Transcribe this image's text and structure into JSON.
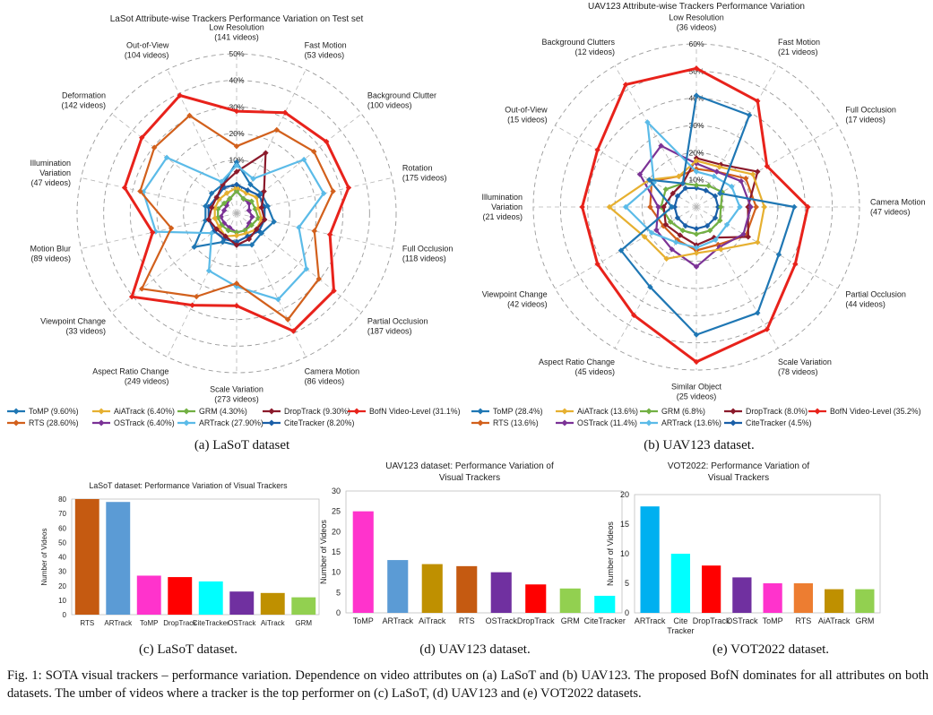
{
  "caption": "Fig. 1: SOTA visual trackers – performance variation. Dependence on video attributes on (a) LaSoT and (b) UAV123. The proposed BofN dominates for all attributes on both datasets. The umber of videos where a tracker is the top performer on (c) LaSoT, (d) UAV123 and (e) VOT2022 datasets.",
  "subcaptions": [
    "(a) LaSoT dataset",
    "(b) UAV123 dataset.",
    "(c) LaSoT dataset.",
    "(d) UAV123 dataset.",
    "(e) VOT2022 dataset."
  ],
  "colors": {
    "ToMP": "#1f77b4",
    "AiATrack": "#e6b030",
    "GRM": "#72b043",
    "DropTrack": "#8b1a2b",
    "BofN": "#e8221b",
    "RTS": "#d2601c",
    "OSTrack": "#7b3296",
    "ARTrack": "#5bbbe8",
    "CiteTracker": "#1a5fa8",
    "bar_tomp": "#ff33cc",
    "bar_rts": "#c55a11",
    "bar_artrack_lasot": "#5b9bd5",
    "bar_artrack_vot": "#00b0f0",
    "bar_droptrack": "#ff0000",
    "bar_citetracker": "#00ffff",
    "bar_ostrack": "#7030a0",
    "bar_aiatrack": "#bf9000",
    "bar_grm": "#92d050",
    "bar_artrack_uav": "#5b9bd5",
    "bar_rts_uav": "#c55a11"
  },
  "chart_data": [
    {
      "type": "radar",
      "title": "LaSot Attribute-wise Trackers Performance Variation on Test set",
      "rmax": 50,
      "ring_labels": [
        "5%",
        "10%",
        "20%",
        "30%",
        "40%",
        "50%"
      ],
      "axes": [
        {
          "name": "Low Resolution",
          "count": "(141 videos)"
        },
        {
          "name": "Fast Motion",
          "count": "(53 videos)"
        },
        {
          "name": "Background Clutter",
          "count": "(100 videos)"
        },
        {
          "name": "Rotation",
          "count": "(175 videos)"
        },
        {
          "name": "Full Occlusion",
          "count": "(118 videos)"
        },
        {
          "name": "Partial Occlusion",
          "count": "(187 videos)"
        },
        {
          "name": "Camera Motion",
          "count": "(86 videos)"
        },
        {
          "name": "Scale Variation",
          "count": "(273 videos)"
        },
        {
          "name": "Aspect Ratio Change",
          "count": "(249 videos)"
        },
        {
          "name": "Viewpoint Change",
          "count": "(33 videos)"
        },
        {
          "name": "Motion Blur",
          "count": "(89 videos)"
        },
        {
          "name": "Illumination Variation",
          "count": "(47 videos)"
        },
        {
          "name": "Deformation",
          "count": "(142 videos)"
        },
        {
          "name": "Out-of-View",
          "count": "(104 videos)"
        }
      ],
      "series": [
        {
          "name": "BofN Video-Level (31.1%)",
          "key": "BofN",
          "values": [
            32,
            35,
            36,
            36,
            30,
            39,
            41,
            29,
            32,
            42,
            27,
            36,
            38,
            41
          ]
        },
        {
          "name": "RTS (28.60%)",
          "key": "RTS",
          "values": [
            21,
            29,
            31,
            31,
            25,
            33,
            37,
            22,
            29,
            38,
            21,
            31,
            33,
            34
          ]
        },
        {
          "name": "ARTrack (27.90%)",
          "key": "ARTrack",
          "values": [
            15,
            12,
            27,
            28,
            20,
            28,
            30,
            23,
            20,
            10,
            26,
            30,
            28,
            11
          ]
        },
        {
          "name": "DropTrack (9.30%)",
          "key": "DropTrack",
          "values": [
            13,
            21,
            11,
            8,
            9,
            8,
            9,
            10,
            8,
            8,
            9,
            8,
            8,
            10
          ]
        },
        {
          "name": "ToMP (9.60%)",
          "key": "ToMP",
          "values": [
            16,
            10,
            10,
            10,
            12,
            10,
            11,
            10,
            10,
            17,
            10,
            10,
            10,
            10
          ]
        },
        {
          "name": "CiteTracker (8.20%)",
          "key": "CiteTracker",
          "values": [
            9,
            8,
            9,
            9,
            9,
            9,
            8,
            9,
            9,
            9,
            9,
            9,
            8,
            9
          ]
        },
        {
          "name": "AiATrack (6.40%)",
          "key": "AiATrack",
          "values": [
            8,
            7,
            8,
            7,
            8,
            8,
            7,
            7,
            8,
            7,
            7,
            7,
            7,
            7
          ]
        },
        {
          "name": "GRM (4.30%)",
          "key": "GRM",
          "values": [
            7,
            5,
            6,
            6,
            7,
            6,
            6,
            6,
            6,
            6,
            6,
            6,
            5,
            5
          ]
        },
        {
          "name": "OSTrack (6.40%)",
          "key": "OSTrack",
          "values": [
            7,
            5,
            5,
            4,
            5,
            5,
            6,
            6,
            5,
            5,
            5,
            4,
            4,
            5
          ]
        }
      ],
      "legend": [
        [
          "ToMP (9.60%)",
          "ToMP"
        ],
        [
          "AiATrack (6.40%)",
          "AiATrack"
        ],
        [
          "GRM (4.30%)",
          "GRM"
        ],
        [
          "DropTrack (9.30%)",
          "DropTrack"
        ],
        [
          "BofN Video-Level (31.1%)",
          "BofN"
        ],
        [
          "RTS (28.60%)",
          "RTS"
        ],
        [
          "OSTrack (6.40%)",
          "OSTrack"
        ],
        [
          "ARTrack (27.90%)",
          "ARTrack"
        ],
        [
          "CiteTracker (8.20%)",
          "CiteTracker"
        ]
      ]
    },
    {
      "type": "radar",
      "title": "UAV123 Attribute-wise Trackers Performance Variation",
      "rmax": 60,
      "ring_labels": [
        "10%",
        "20%",
        "30%",
        "40%",
        "50%",
        "60%"
      ],
      "axes": [
        {
          "name": "Low Resolution",
          "count": "(36 videos)"
        },
        {
          "name": "Fast Motion",
          "count": "(21 videos)"
        },
        {
          "name": "Full Occlusion",
          "count": "(17 videos)"
        },
        {
          "name": "Camera Motion",
          "count": "(47 videos)"
        },
        {
          "name": "Partial Occlusion",
          "count": "(44 videos)"
        },
        {
          "name": "Scale Variation",
          "count": "(78 videos)"
        },
        {
          "name": "Similar Object",
          "count": "(25 videos)"
        },
        {
          "name": "Aspect Ratio Change",
          "count": "(45 videos)"
        },
        {
          "name": "Viewpoint Change",
          "count": "(42 videos)"
        },
        {
          "name": "Illumination Variation",
          "count": "(21 videos)"
        },
        {
          "name": "Out-of-View",
          "count": "(15 videos)"
        },
        {
          "name": "Background Clutters",
          "count": "(12 videos)"
        }
      ],
      "series": [
        {
          "name": "BofN Video-Level (35.2%)",
          "key": "BofN",
          "values": [
            51,
            45,
            30,
            41,
            42,
            52,
            57,
            46,
            42,
            42,
            42,
            52
          ]
        },
        {
          "name": "ToMP (28.4%)",
          "key": "ToMP",
          "values": [
            41,
            39,
            10,
            36,
            35,
            45,
            47,
            34,
            32,
            9,
            20,
            10
          ]
        },
        {
          "name": "ARTrack (13.6%)",
          "key": "ARTrack",
          "values": [
            13,
            13,
            15,
            16,
            13,
            14,
            15,
            15,
            19,
            26,
            18,
            36
          ]
        },
        {
          "name": "AiATrack (13.6%)",
          "key": "AiATrack",
          "values": [
            17,
            17,
            24,
            25,
            26,
            18,
            17,
            22,
            22,
            32,
            20,
            13
          ]
        },
        {
          "name": "OSTrack (11.4%)",
          "key": "OSTrack",
          "values": [
            16,
            15,
            19,
            20,
            20,
            17,
            22,
            18,
            17,
            14,
            24,
            26
          ]
        },
        {
          "name": "DropTrack (8.0%)",
          "key": "DropTrack",
          "values": [
            18,
            18,
            26,
            19,
            22,
            13,
            14,
            12,
            13,
            12,
            10,
            10
          ]
        },
        {
          "name": "RTS (13.6%)",
          "key": "RTS",
          "values": [
            14,
            15,
            21,
            22,
            21,
            16,
            16,
            14,
            14,
            17,
            19,
            13
          ]
        },
        {
          "name": "GRM (6.8%)",
          "key": "GRM",
          "values": [
            8,
            9,
            11,
            9,
            10,
            10,
            10,
            10,
            11,
            13,
            13,
            10
          ]
        },
        {
          "name": "CiteTracker (4.5%)",
          "key": "CiteTracker",
          "values": [
            7,
            7,
            8,
            8,
            8,
            8,
            8,
            8,
            8,
            8,
            8,
            8
          ]
        }
      ],
      "legend": [
        [
          "ToMP (28.4%)",
          "ToMP"
        ],
        [
          "AiATrack (13.6%)",
          "AiATrack"
        ],
        [
          "GRM (6.8%)",
          "GRM"
        ],
        [
          "DropTrack (8.0%)",
          "DropTrack"
        ],
        [
          "BofN Video-Level (35.2%)",
          "BofN"
        ],
        [
          "RTS (13.6%)",
          "RTS"
        ],
        [
          "OSTrack (11.4%)",
          "OSTrack"
        ],
        [
          "ARTrack (13.6%)",
          "ARTrack"
        ],
        [
          "CiteTracker (4.5%)",
          "CiteTracker"
        ]
      ]
    },
    {
      "type": "bar",
      "title": "LaSoT dataset: Performance Variation of Visual Trackers",
      "ylabel": "Number of Videos",
      "ylim": [
        0,
        80
      ],
      "yticks": [
        0,
        10,
        20,
        30,
        40,
        50,
        60,
        70,
        80
      ],
      "categories": [
        "RTS",
        "ARTrack",
        "ToMP",
        "DropTrack",
        "CiteTracker",
        "OSTrack",
        "AiTrack",
        "GRM"
      ],
      "values": [
        80,
        78,
        27,
        26,
        23,
        16,
        15,
        12
      ],
      "bar_colors": [
        "#c55a11",
        "#5b9bd5",
        "#ff33cc",
        "#ff0000",
        "#00ffff",
        "#7030a0",
        "#bf9000",
        "#92d050"
      ]
    },
    {
      "type": "bar",
      "title": "UAV123 dataset: Performance Variation of Visual Trackers",
      "ylabel": "Number of Videos",
      "ylim": [
        0,
        30
      ],
      "yticks": [
        0,
        5,
        10,
        15,
        20,
        25,
        30
      ],
      "categories": [
        "ToMP",
        "ARTrack",
        "AiTrack",
        "RTS",
        "OSTrack",
        "DropTrack",
        "GRM",
        "CiteTracker"
      ],
      "values": [
        25,
        13,
        12,
        11.5,
        10,
        7,
        6,
        4.2
      ],
      "bar_colors": [
        "#ff33cc",
        "#5b9bd5",
        "#bf9000",
        "#c55a11",
        "#7030a0",
        "#ff0000",
        "#92d050",
        "#00ffff"
      ]
    },
    {
      "type": "bar",
      "title": "VOT2022: Performance Variation of Visual Trackers",
      "ylabel": "Number of Videos",
      "ylim": [
        0,
        20
      ],
      "yticks": [
        0,
        5,
        10,
        15,
        20
      ],
      "categories": [
        "ARTrack",
        "Cite Tracker",
        "DropTrack",
        "OSTrack",
        "ToMP",
        "RTS",
        "AiATrack",
        "GRM"
      ],
      "values": [
        18,
        10,
        8,
        6,
        5,
        5,
        4,
        4
      ],
      "bar_colors": [
        "#00b0f0",
        "#00ffff",
        "#ff0000",
        "#7030a0",
        "#ff33cc",
        "#ed7d31",
        "#bf9000",
        "#92d050"
      ]
    }
  ]
}
